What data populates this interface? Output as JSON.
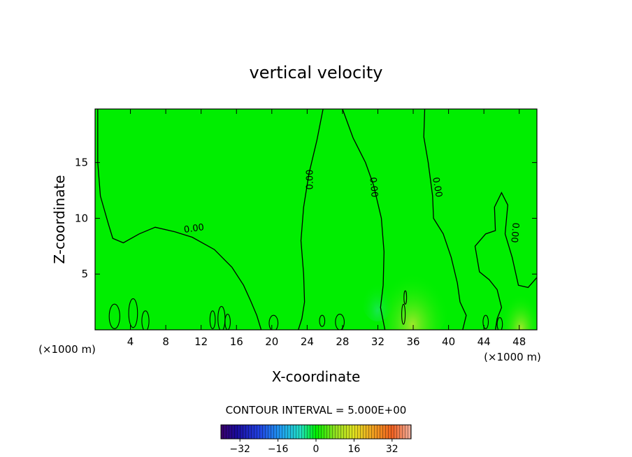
{
  "chart_data": {
    "type": "heatmap",
    "title": "vertical velocity",
    "xlabel": "X-coordinate",
    "ylabel": "Z-coordinate",
    "x_unit_left": "(×1000 m)",
    "x_unit_right": "(×1000 m)",
    "xlim": [
      0,
      50
    ],
    "ylim": [
      0,
      19.8
    ],
    "xticks": [
      4,
      8,
      12,
      16,
      20,
      24,
      28,
      32,
      36,
      40,
      44,
      48
    ],
    "yticks": [
      5,
      10,
      15
    ],
    "contour_interval_text": "CONTOUR INTERVAL = 5.000E+00",
    "contour_label": "0.00",
    "zero_contours": [
      [
        [
          0.3,
          19.8
        ],
        [
          0.3,
          15
        ],
        [
          0.6,
          12
        ],
        [
          1.5,
          9.5
        ],
        [
          2,
          8.2
        ],
        [
          3.2,
          7.8
        ],
        [
          5,
          8.6
        ],
        [
          6.8,
          9.2
        ],
        [
          9,
          8.8
        ],
        [
          11,
          8.3
        ],
        [
          13.5,
          7.2
        ],
        [
          15.5,
          5.6
        ],
        [
          16.8,
          4
        ],
        [
          17.6,
          2.6
        ],
        [
          18.3,
          1.3
        ],
        [
          18.8,
          0
        ]
      ],
      [
        [
          25.8,
          19.8
        ],
        [
          25.1,
          17
        ],
        [
          24.2,
          14
        ],
        [
          23.6,
          11
        ],
        [
          23.3,
          8
        ],
        [
          23.6,
          5
        ],
        [
          23.7,
          2.5
        ],
        [
          23.4,
          1
        ],
        [
          23,
          0
        ]
      ],
      [
        [
          28,
          19.8
        ],
        [
          29.2,
          17.2
        ],
        [
          30.6,
          15
        ],
        [
          31.5,
          13
        ],
        [
          32.4,
          10
        ],
        [
          32.7,
          7
        ],
        [
          32.6,
          4
        ],
        [
          32.3,
          2
        ],
        [
          32.8,
          0
        ]
      ],
      [
        [
          37.3,
          19.8
        ],
        [
          37.2,
          17.3
        ],
        [
          37.7,
          15
        ],
        [
          38.2,
          12
        ],
        [
          38.3,
          10
        ],
        [
          39.4,
          8.6
        ],
        [
          40.3,
          6.5
        ],
        [
          41,
          4.2
        ],
        [
          41.3,
          2.5
        ],
        [
          42,
          1.3
        ],
        [
          41.6,
          0
        ]
      ],
      [
        [
          50,
          4.7
        ],
        [
          49,
          3.8
        ],
        [
          47.9,
          4
        ],
        [
          47.2,
          6.5
        ],
        [
          46.4,
          8.6
        ],
        [
          46.7,
          11.2
        ],
        [
          46,
          12.3
        ],
        [
          45.2,
          11
        ],
        [
          45.3,
          8.9
        ],
        [
          44.2,
          8.6
        ],
        [
          43,
          7.5
        ],
        [
          43.5,
          5.2
        ],
        [
          44.6,
          4.5
        ],
        [
          45.5,
          3.6
        ],
        [
          46,
          2
        ],
        [
          45.5,
          1
        ],
        [
          45.3,
          0
        ]
      ]
    ],
    "colorbar": {
      "min": -40,
      "max": 40,
      "tick_values": [
        -32,
        -16,
        0,
        16,
        32
      ],
      "tick_labels": [
        "−32",
        "−16",
        "0",
        "16",
        "32"
      ]
    },
    "colors": {
      "field": "#00ee00",
      "contour": "#000000"
    }
  }
}
